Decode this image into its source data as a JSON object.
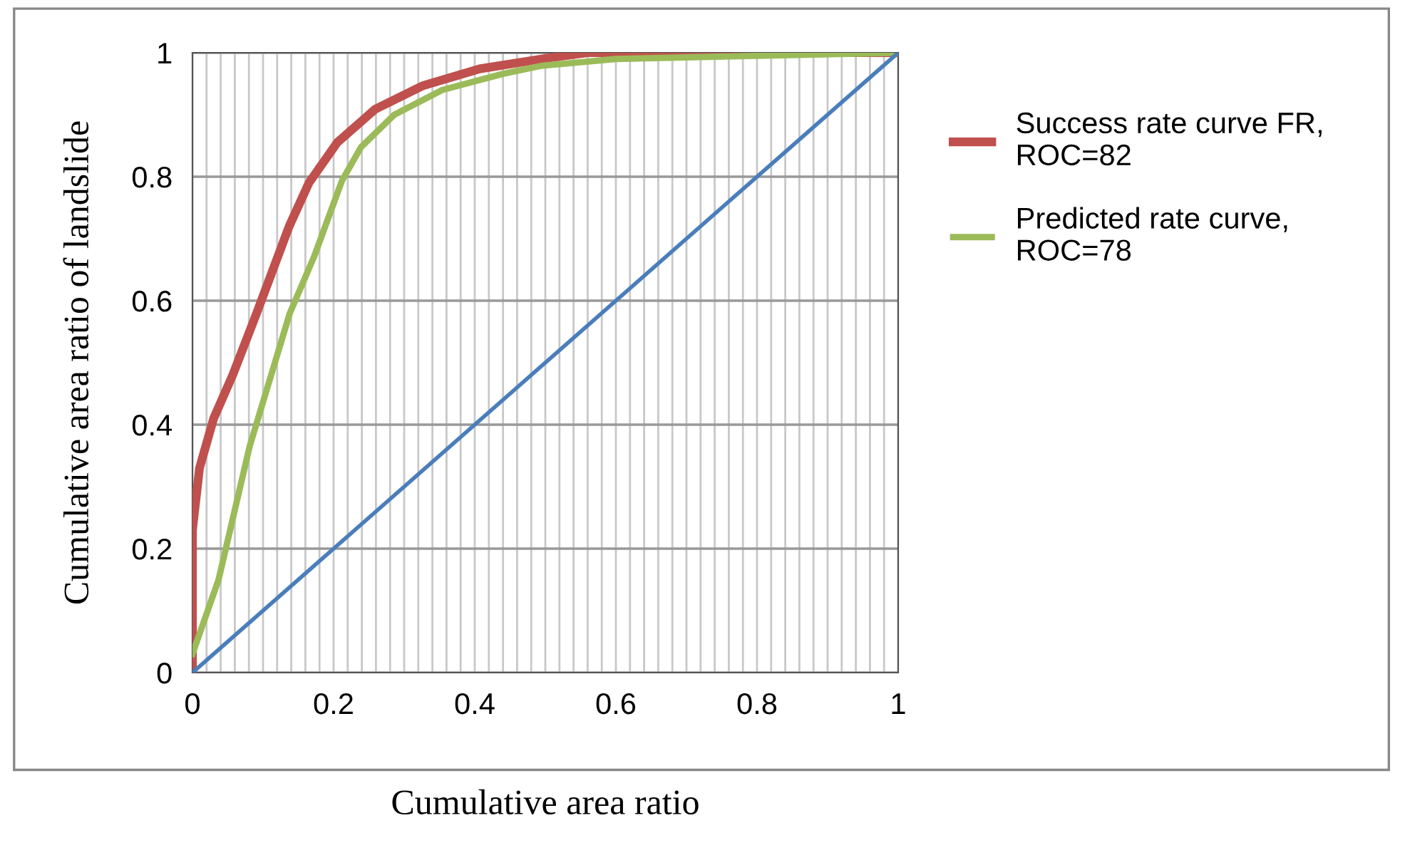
{
  "chart_data": {
    "type": "line",
    "xlabel": "Cumulative area ratio",
    "ylabel": "Cumulative area ratio of landslide",
    "xlim": [
      0,
      1
    ],
    "ylim": [
      0,
      1
    ],
    "xticks": [
      0,
      0.2,
      0.4,
      0.6,
      0.8,
      1
    ],
    "yticks": [
      0,
      0.2,
      0.4,
      0.6,
      0.8,
      1
    ],
    "grid": true,
    "legend": "right",
    "marker": "none",
    "line_style": "solid",
    "series": [
      {
        "name": "Success rate curve FR,\nROC=82",
        "color": "#c0504d",
        "x": [
          0,
          0,
          0.01,
          0.03,
          0.057,
          0.091,
          0.137,
          0.165,
          0.205,
          0.259,
          0.327,
          0.407,
          0.495,
          0.56,
          0.7,
          1
        ],
        "values": [
          0,
          0.23,
          0.33,
          0.41,
          0.48,
          0.58,
          0.72,
          0.79,
          0.855,
          0.909,
          0.947,
          0.974,
          0.99,
          1,
          1,
          1
        ]
      },
      {
        "name": "Predicted rate curve,\nROC=78",
        "color": "#9bbb59",
        "x": [
          0,
          0.037,
          0.081,
          0.138,
          0.172,
          0.212,
          0.239,
          0.286,
          0.354,
          0.44,
          0.495,
          0.6,
          0.8,
          1
        ],
        "values": [
          0.03,
          0.15,
          0.365,
          0.58,
          0.67,
          0.794,
          0.848,
          0.9,
          0.94,
          0.966,
          0.979,
          0.99,
          0.995,
          1
        ]
      },
      {
        "color": "#4a7ebb",
        "x": [
          0,
          1
        ],
        "values": [
          0,
          1
        ]
      }
    ]
  }
}
